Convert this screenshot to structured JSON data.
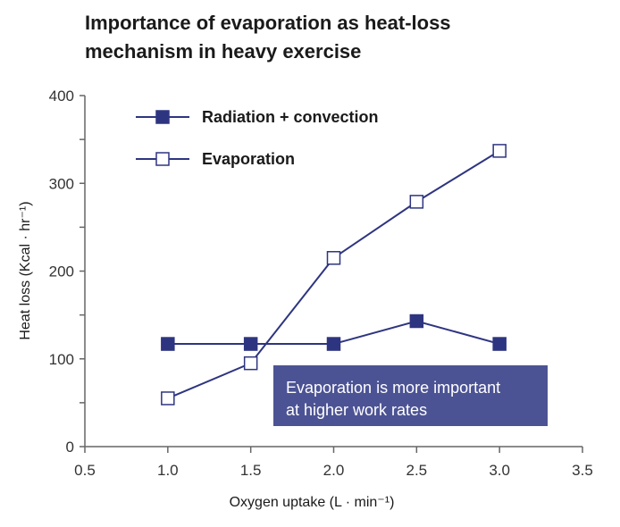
{
  "chart_data": {
    "type": "line",
    "title_lines": [
      "Importance of evaporation as heat-loss",
      "mechanism in heavy exercise"
    ],
    "xlabel": "Oxygen uptake (L · min⁻¹)",
    "ylabel": "Heat loss (Kcal · hr⁻¹)",
    "xlim": [
      0.5,
      3.5
    ],
    "ylim": [
      0,
      400
    ],
    "x_ticks": [
      "0.5",
      "1.0",
      "1.5",
      "2.0",
      "2.5",
      "3.0",
      "3.5"
    ],
    "y_ticks": [
      "0",
      "100",
      "200",
      "300",
      "400"
    ],
    "x": [
      1.0,
      1.5,
      2.0,
      2.5,
      3.0
    ],
    "grid": false,
    "legend_position": "top-left",
    "series": [
      {
        "name": "Radiation + convection",
        "values": [
          117,
          117,
          117,
          143,
          117
        ],
        "marker": "filled-square",
        "color": "#2e3580"
      },
      {
        "name": "Evaporation",
        "values": [
          55,
          95,
          215,
          279,
          337
        ],
        "marker": "open-square",
        "color": "#2e3580"
      }
    ],
    "annotation": {
      "lines": [
        "Evaporation is more important",
        "at higher work rates"
      ],
      "color": "#4c5394"
    }
  }
}
